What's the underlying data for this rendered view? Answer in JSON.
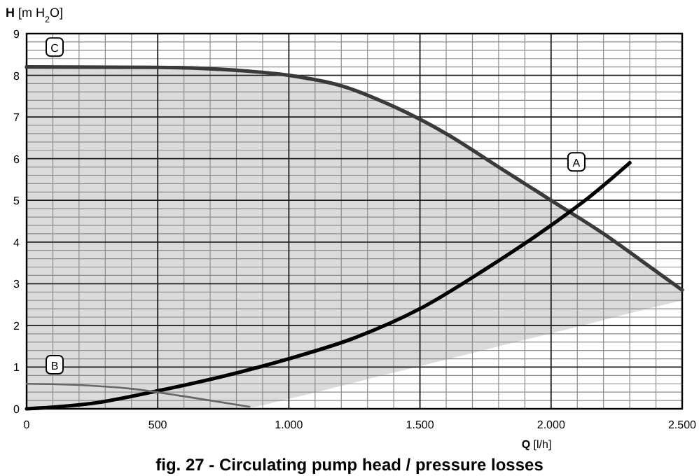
{
  "chart_data": {
    "type": "line",
    "title": "fig. 27 - Circulating pump head / pressure losses",
    "xlabel": "Q [l/h]",
    "ylabel": "H [m H$_{2}$O]",
    "xlim": [
      0,
      2500
    ],
    "ylim": [
      0,
      9
    ],
    "xticks": [
      0,
      500,
      {
        "value": 1000,
        "label": "1.000"
      },
      {
        "value": 1500,
        "label": "1.500"
      },
      {
        "value": 2000,
        "label": "2.000"
      },
      {
        "value": 2500,
        "label": "2.500"
      }
    ],
    "yticks": [
      0,
      1,
      2,
      3,
      4,
      5,
      6,
      7,
      8,
      9
    ],
    "grid": true,
    "legend": false,
    "marker": "none",
    "series": [
      {
        "name": "C",
        "color": "#3a3a3a",
        "x": [
          0,
          500,
          800,
          1000,
          1200,
          1400,
          1600,
          1800,
          2000,
          2200,
          2400,
          2500
        ],
        "values": [
          8.2,
          8.19,
          8.12,
          8.0,
          7.75,
          7.25,
          6.6,
          5.8,
          5.0,
          4.2,
          3.3,
          2.85
        ],
        "lower": [
          0,
          0,
          0,
          0.24,
          0.55,
          0.87,
          1.18,
          1.5,
          1.81,
          2.13,
          2.45,
          2.6
        ],
        "upper": [
          8.2,
          8.19,
          8.12,
          8.0,
          7.75,
          7.25,
          6.6,
          5.8,
          5.0,
          4.2,
          3.3,
          2.85
        ]
      },
      {
        "name": "A",
        "color": "#000000",
        "x": [
          0,
          250,
          500,
          750,
          1000,
          1250,
          1500,
          1750,
          2000,
          2150,
          2300
        ],
        "values": [
          0,
          0.13,
          0.43,
          0.78,
          1.2,
          1.7,
          2.4,
          3.35,
          4.4,
          5.1,
          5.9
        ]
      },
      {
        "name": "B",
        "color": "#666666",
        "x": [
          0,
          200,
          400,
          600,
          850
        ],
        "values": [
          0.6,
          0.57,
          0.48,
          0.3,
          0.05
        ]
      }
    ]
  }
}
